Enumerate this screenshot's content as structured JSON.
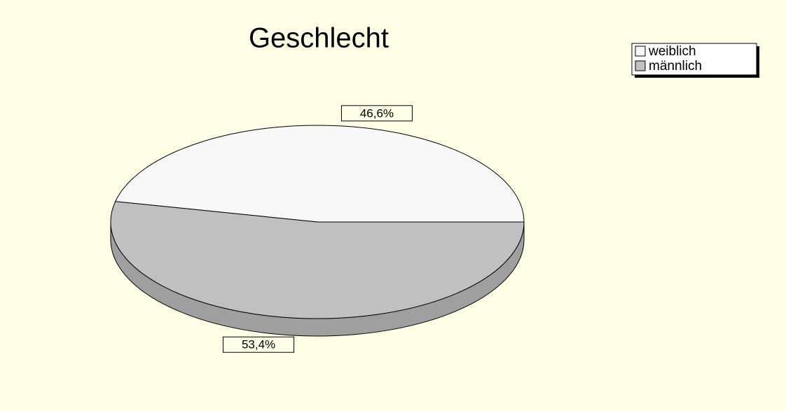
{
  "chart_data": {
    "type": "pie",
    "title": "Geschlecht",
    "categories": [
      "weiblich",
      "männlich"
    ],
    "values": [
      46.6,
      53.4
    ],
    "value_labels": [
      "46,6%",
      "53,4%"
    ],
    "colors": [
      "#f8f8f8",
      "#c0c0c0"
    ],
    "legend": "top-right"
  }
}
